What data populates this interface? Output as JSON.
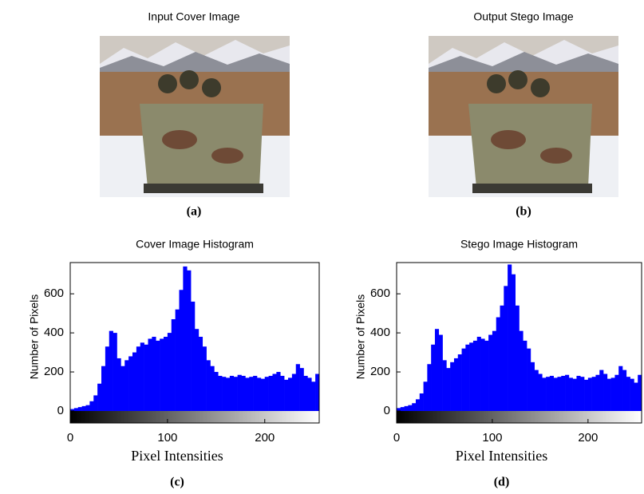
{
  "images": [
    {
      "title": "Input Cover Image",
      "caption": "(a)"
    },
    {
      "title": "Output Stego Image",
      "caption": "(b)"
    }
  ],
  "chart_data": [
    {
      "type": "histogram",
      "title": "Cover Image Histogram",
      "x_label": "Pixel Intensities",
      "y_label": "Number of Pixels",
      "caption": "(c)",
      "color": "#0000ff",
      "bins": [
        0,
        4,
        8,
        12,
        16,
        20,
        24,
        28,
        32,
        36,
        40,
        44,
        48,
        52,
        56,
        60,
        64,
        68,
        72,
        76,
        80,
        84,
        88,
        92,
        96,
        100,
        104,
        108,
        112,
        116,
        120,
        124,
        128,
        132,
        136,
        140,
        144,
        148,
        152,
        156,
        160,
        164,
        168,
        172,
        176,
        180,
        184,
        188,
        192,
        196,
        200,
        204,
        208,
        212,
        216,
        220,
        224,
        228,
        232,
        236,
        240,
        244,
        248,
        252,
        256
      ],
      "values": [
        10,
        15,
        20,
        25,
        30,
        50,
        80,
        140,
        230,
        330,
        410,
        400,
        270,
        230,
        260,
        280,
        300,
        330,
        350,
        340,
        370,
        380,
        360,
        370,
        380,
        400,
        470,
        520,
        620,
        740,
        720,
        560,
        420,
        380,
        330,
        260,
        230,
        200,
        180,
        175,
        170,
        180,
        175,
        185,
        180,
        170,
        175,
        180,
        170,
        165,
        175,
        180,
        190,
        200,
        180,
        160,
        170,
        190,
        240,
        220,
        180,
        170,
        150,
        190
      ],
      "xlim": [
        0,
        256
      ],
      "ylim": [
        0,
        760
      ],
      "xticks": [
        0,
        100,
        200
      ],
      "yticks": [
        0,
        200,
        400,
        600
      ]
    },
    {
      "type": "histogram",
      "title": "Stego Image Histogram",
      "x_label": "Pixel Intensities",
      "y_label": "Number of Pixels",
      "caption": "(d)",
      "color": "#0000ff",
      "bins": [
        0,
        4,
        8,
        12,
        16,
        20,
        24,
        28,
        32,
        36,
        40,
        44,
        48,
        52,
        56,
        60,
        64,
        68,
        72,
        76,
        80,
        84,
        88,
        92,
        96,
        100,
        104,
        108,
        112,
        116,
        120,
        124,
        128,
        132,
        136,
        140,
        144,
        148,
        152,
        156,
        160,
        164,
        168,
        172,
        176,
        180,
        184,
        188,
        192,
        196,
        200,
        204,
        208,
        212,
        216,
        220,
        224,
        228,
        232,
        236,
        240,
        244,
        248,
        252,
        256
      ],
      "values": [
        15,
        20,
        25,
        30,
        40,
        60,
        90,
        150,
        240,
        340,
        420,
        390,
        260,
        220,
        250,
        270,
        290,
        320,
        340,
        350,
        360,
        380,
        370,
        360,
        390,
        410,
        480,
        540,
        640,
        750,
        700,
        540,
        410,
        360,
        320,
        250,
        210,
        190,
        170,
        175,
        180,
        170,
        175,
        180,
        185,
        170,
        165,
        180,
        175,
        160,
        170,
        175,
        185,
        210,
        190,
        165,
        170,
        185,
        230,
        210,
        175,
        165,
        145,
        185
      ],
      "xlim": [
        0,
        256
      ],
      "ylim": [
        0,
        760
      ],
      "xticks": [
        0,
        100,
        200
      ],
      "yticks": [
        0,
        200,
        400,
        600
      ]
    }
  ]
}
